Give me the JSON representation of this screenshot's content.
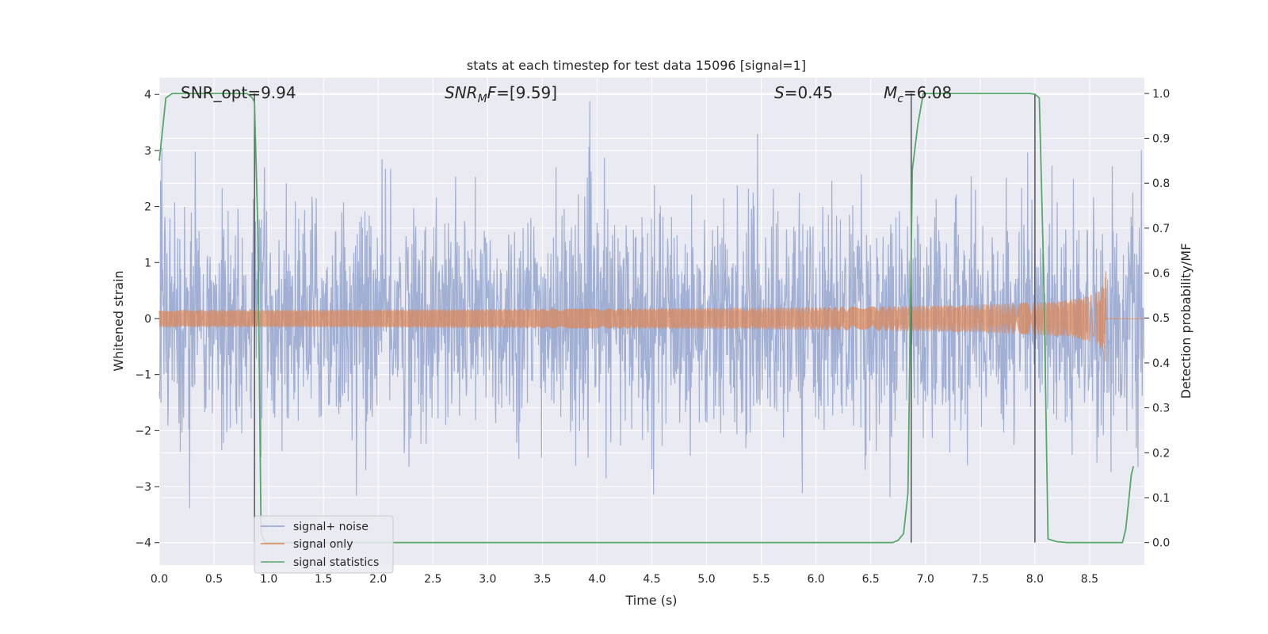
{
  "chart_data": {
    "type": "line",
    "title": "stats at each timestep for test data 15096 [signal=1]",
    "xlabel": "Time (s)",
    "ylabel": "Whitened strain",
    "y2label": "Detection probability/MF",
    "xlim": [
      0.0,
      9.0
    ],
    "ylim": [
      -4.4,
      4.3
    ],
    "y2lim": [
      -0.05,
      1.035
    ],
    "xticks": [
      "0.0",
      "0.5",
      "1.0",
      "1.5",
      "2.0",
      "2.5",
      "3.0",
      "3.5",
      "4.0",
      "4.5",
      "5.0",
      "5.5",
      "6.0",
      "6.5",
      "7.0",
      "7.5",
      "8.0",
      "8.5"
    ],
    "yticks": [
      "4",
      "3",
      "2",
      "1",
      "0",
      "−1",
      "−2",
      "−3",
      "−4"
    ],
    "y2ticks": [
      "1.0",
      "0.9",
      "0.8",
      "0.7",
      "0.6",
      "0.5",
      "0.4",
      "0.3",
      "0.2",
      "0.1",
      "0.0"
    ],
    "annotations": {
      "snr_opt": "SNR_opt=9.94",
      "snr_mf_sym": "SNR",
      "snr_mf_sub": "M",
      "snr_mf_rest": "F",
      "snr_mf_val": "=[9.59]",
      "s_sym": "S",
      "s_val": "=0.45",
      "mc_sym": "M",
      "mc_sub": "c",
      "mc_val": "=6.08"
    },
    "legend": {
      "placement": "lower-left",
      "entries": [
        "signal+ noise",
        "signal only",
        "signal statistics"
      ]
    },
    "colors": {
      "noise": "#8da0cb",
      "signal": "#dd8452",
      "stats": "#55a868",
      "vlines": "#555555",
      "background": "#eaeaf2",
      "grid": "#ffffff"
    },
    "series": [
      {
        "name": "signal statistics",
        "axis": "right",
        "x": [
          0.0,
          0.06,
          0.12,
          0.2,
          0.3,
          0.5,
          0.7,
          0.8,
          0.85,
          0.87,
          0.9,
          0.93,
          0.97,
          1.1,
          2.0,
          4.0,
          6.0,
          6.5,
          6.7,
          6.75,
          6.8,
          6.84,
          6.88,
          6.93,
          6.98,
          7.2,
          7.6,
          7.95,
          8.0,
          8.04,
          8.08,
          8.12,
          8.2,
          8.3,
          8.5,
          8.75,
          8.8,
          8.83,
          8.86,
          8.88,
          8.9
        ],
        "y": [
          0.85,
          0.99,
          1.0,
          1.0,
          1.0,
          1.0,
          1.0,
          1.0,
          0.99,
          0.98,
          0.7,
          0.02,
          0.0,
          0.0,
          0.0,
          0.0,
          0.0,
          0.0,
          0.0,
          0.005,
          0.02,
          0.11,
          0.83,
          0.93,
          1.0,
          1.0,
          1.0,
          1.0,
          0.998,
          0.99,
          0.6,
          0.008,
          0.002,
          0.0,
          0.0,
          0.0,
          0.0,
          0.03,
          0.1,
          0.15,
          0.17
        ]
      },
      {
        "name": "signal only",
        "axis": "left",
        "chirp_start": 0.0,
        "chirp_end": 8.65,
        "peak_time": 8.65,
        "peak_amplitude": 1.0
      },
      {
        "name": "signal+ noise",
        "axis": "left",
        "duration": 9.0,
        "sample_rate_hz": 256,
        "typical_range": [
          -2.5,
          2.5
        ]
      }
    ],
    "vlines": [
      0.87,
      6.87,
      8.0
    ]
  }
}
